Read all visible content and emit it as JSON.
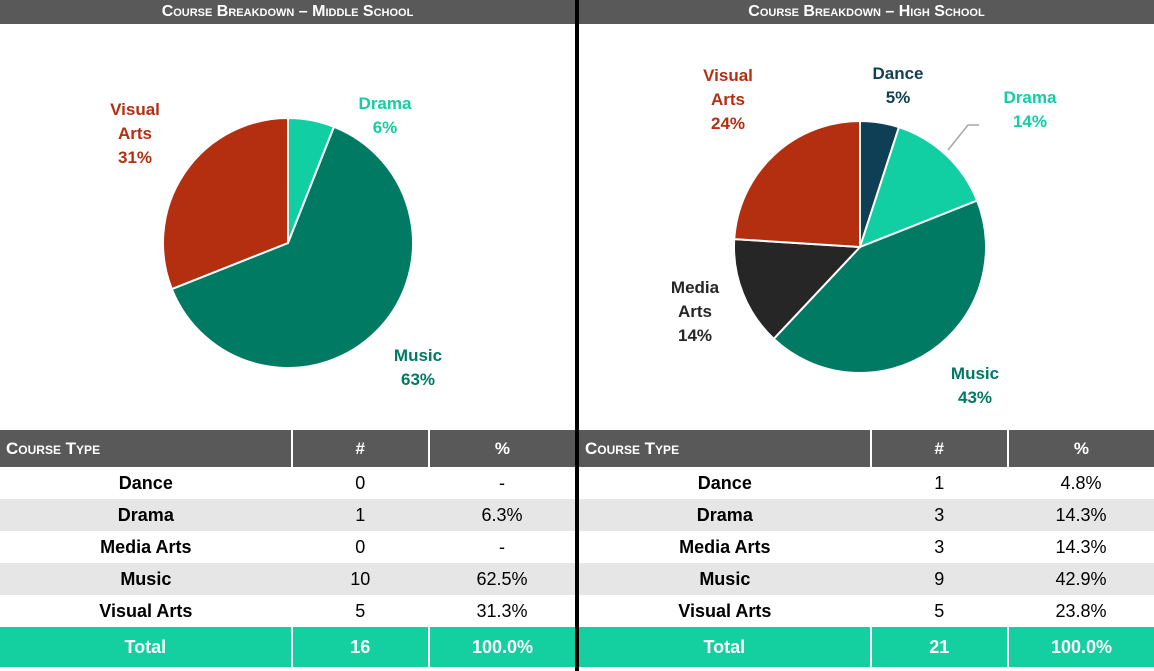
{
  "chart_data": [
    {
      "type": "pie",
      "title": "Course Breakdown – Middle School",
      "categories": [
        "Drama",
        "Music",
        "Visual Arts"
      ],
      "values": [
        6,
        63,
        31
      ],
      "value_labels": [
        "6%",
        "63%",
        "31%"
      ],
      "colors": [
        "#12cfa3",
        "#007a63",
        "#b42f10"
      ]
    },
    {
      "type": "pie",
      "title": "Course Breakdown – High School",
      "categories": [
        "Dance",
        "Drama",
        "Music",
        "Media Arts",
        "Visual Arts"
      ],
      "values": [
        5,
        14,
        43,
        14,
        24
      ],
      "value_labels": [
        "5%",
        "14%",
        "43%",
        "14%",
        "24%"
      ],
      "colors": [
        "#0e3f54",
        "#12cfa3",
        "#007a63",
        "#262626",
        "#b42f10"
      ]
    }
  ],
  "tables": [
    {
      "columns": [
        "Course Type",
        "#",
        "%"
      ],
      "rows": [
        [
          "Dance",
          "0",
          "-"
        ],
        [
          "Drama",
          "1",
          "6.3%"
        ],
        [
          "Media Arts",
          "0",
          "-"
        ],
        [
          "Music",
          "10",
          "62.5%"
        ],
        [
          "Visual Arts",
          "5",
          "31.3%"
        ]
      ],
      "total": [
        "Total",
        "16",
        "100.0%"
      ]
    },
    {
      "columns": [
        "Course Type",
        "#",
        "%"
      ],
      "rows": [
        [
          "Dance",
          "1",
          "4.8%"
        ],
        [
          "Drama",
          "3",
          "14.3%"
        ],
        [
          "Media Arts",
          "3",
          "14.3%"
        ],
        [
          "Music",
          "9",
          "42.9%"
        ],
        [
          "Visual Arts",
          "5",
          "23.8%"
        ]
      ],
      "total": [
        "Total",
        "21",
        "100.0%"
      ]
    }
  ]
}
